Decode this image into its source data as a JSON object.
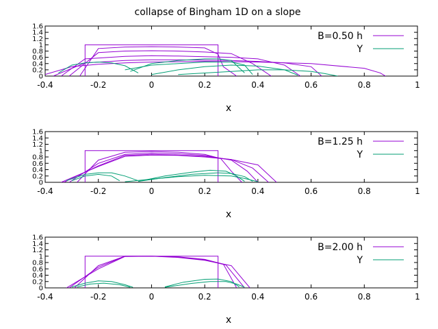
{
  "title": "collapse of Bingham 1D on a slope",
  "colors": {
    "h": "#9400d3",
    "Y": "#009e73"
  },
  "xlabel": "x",
  "xticks": [
    "-0.4",
    "-0.2",
    "0",
    "0.2",
    "0.4",
    "0.6",
    "0.8",
    "1"
  ],
  "yticks": [
    "0",
    "0.2",
    "0.4",
    "0.6",
    "0.8",
    "1",
    "1.2",
    "1.4",
    "1.6"
  ],
  "chart_data": [
    {
      "type": "line",
      "legend": [
        "B=0.50 h",
        "Y"
      ],
      "xlim": [
        -0.4,
        1.0
      ],
      "ylim": [
        0,
        1.6
      ],
      "series": [
        {
          "group": "h",
          "x": [
            -0.25,
            -0.25,
            0.25,
            0.25
          ],
          "y": [
            0,
            1,
            1,
            0
          ]
        },
        {
          "group": "h",
          "x": [
            -0.27,
            -0.2,
            -0.1,
            0.0,
            0.1,
            0.2,
            0.25,
            0.27,
            0.32
          ],
          "y": [
            0,
            0.88,
            0.93,
            0.94,
            0.93,
            0.9,
            0.7,
            0.3,
            0
          ]
        },
        {
          "group": "h",
          "x": [
            -0.31,
            -0.2,
            -0.1,
            0.0,
            0.1,
            0.2,
            0.3,
            0.38,
            0.45
          ],
          "y": [
            0,
            0.75,
            0.8,
            0.81,
            0.8,
            0.77,
            0.72,
            0.4,
            0
          ]
        },
        {
          "group": "h",
          "x": [
            -0.34,
            -0.25,
            -0.1,
            0.0,
            0.1,
            0.2,
            0.3,
            0.4,
            0.5,
            0.56
          ],
          "y": [
            0,
            0.55,
            0.63,
            0.65,
            0.64,
            0.62,
            0.6,
            0.55,
            0.35,
            0
          ]
        },
        {
          "group": "h",
          "x": [
            -0.37,
            -0.25,
            -0.1,
            0.0,
            0.1,
            0.2,
            0.3,
            0.4,
            0.5,
            0.6,
            0.64
          ],
          "y": [
            0,
            0.42,
            0.5,
            0.52,
            0.52,
            0.51,
            0.5,
            0.47,
            0.42,
            0.3,
            0
          ]
        },
        {
          "group": "h",
          "x": [
            -0.4,
            -0.3,
            -0.2,
            -0.1,
            0.0,
            0.2,
            0.4,
            0.6,
            0.8,
            0.86,
            0.88
          ],
          "y": [
            0.05,
            0.3,
            0.38,
            0.42,
            0.45,
            0.47,
            0.45,
            0.4,
            0.25,
            0.1,
            0
          ]
        },
        {
          "group": "Y",
          "x": [
            -0.35,
            -0.3,
            -0.25,
            -0.2,
            -0.15,
            -0.1,
            -0.05
          ],
          "y": [
            0.1,
            0.35,
            0.42,
            0.45,
            0.42,
            0.33,
            0.1
          ]
        },
        {
          "group": "Y",
          "x": [
            -0.08,
            0.0,
            0.1,
            0.2,
            0.25,
            0.3,
            0.35
          ],
          "y": [
            0.15,
            0.4,
            0.5,
            0.55,
            0.55,
            0.5,
            0.1
          ]
        },
        {
          "group": "Y",
          "x": [
            -0.1,
            0.0,
            0.2,
            0.3,
            0.35,
            0.38
          ],
          "y": [
            0.2,
            0.35,
            0.45,
            0.45,
            0.35,
            0.05
          ]
        },
        {
          "group": "Y",
          "x": [
            0.0,
            0.1,
            0.2,
            0.3,
            0.4,
            0.5,
            0.55
          ],
          "y": [
            0.05,
            0.2,
            0.3,
            0.35,
            0.32,
            0.2,
            0.03
          ]
        },
        {
          "group": "Y",
          "x": [
            0.1,
            0.3,
            0.4,
            0.5,
            0.6,
            0.65,
            0.7
          ],
          "y": [
            0.05,
            0.15,
            0.2,
            0.2,
            0.15,
            0.08,
            0
          ]
        }
      ]
    },
    {
      "type": "line",
      "legend": [
        "B=1.25 h",
        "Y"
      ],
      "xlim": [
        -0.4,
        1.0
      ],
      "ylim": [
        0,
        1.6
      ],
      "series": [
        {
          "group": "h",
          "x": [
            -0.25,
            -0.25,
            0.25,
            0.25
          ],
          "y": [
            0,
            1,
            1,
            0
          ]
        },
        {
          "group": "h",
          "x": [
            -0.28,
            -0.2,
            -0.1,
            0.0,
            0.1,
            0.2,
            0.26,
            0.3,
            0.34
          ],
          "y": [
            0,
            0.7,
            0.95,
            0.97,
            0.95,
            0.88,
            0.75,
            0.35,
            0
          ]
        },
        {
          "group": "h",
          "x": [
            -0.31,
            -0.2,
            -0.1,
            0.0,
            0.1,
            0.2,
            0.3,
            0.36,
            0.4
          ],
          "y": [
            0,
            0.6,
            0.88,
            0.92,
            0.9,
            0.85,
            0.7,
            0.35,
            0
          ]
        },
        {
          "group": "h",
          "x": [
            -0.33,
            -0.2,
            -0.1,
            0.0,
            0.1,
            0.2,
            0.3,
            0.38,
            0.44
          ],
          "y": [
            0,
            0.52,
            0.85,
            0.88,
            0.86,
            0.82,
            0.72,
            0.45,
            0
          ]
        },
        {
          "group": "h",
          "x": [
            -0.34,
            -0.2,
            -0.1,
            0.0,
            0.1,
            0.2,
            0.3,
            0.4,
            0.47
          ],
          "y": [
            0,
            0.5,
            0.82,
            0.86,
            0.85,
            0.8,
            0.72,
            0.55,
            0
          ]
        },
        {
          "group": "Y",
          "x": [
            -0.32,
            -0.25,
            -0.2,
            -0.15,
            -0.1,
            -0.05
          ],
          "y": [
            0.05,
            0.25,
            0.3,
            0.3,
            0.2,
            0.05
          ]
        },
        {
          "group": "Y",
          "x": [
            -0.3,
            -0.25,
            -0.2,
            -0.15,
            -0.12
          ],
          "y": [
            0.05,
            0.2,
            0.25,
            0.2,
            0.05
          ]
        },
        {
          "group": "Y",
          "x": [
            -0.05,
            0.05,
            0.15,
            0.22,
            0.28,
            0.32,
            0.35
          ],
          "y": [
            0.03,
            0.2,
            0.32,
            0.38,
            0.35,
            0.2,
            0.03
          ]
        },
        {
          "group": "Y",
          "x": [
            -0.05,
            0.05,
            0.15,
            0.25,
            0.3,
            0.35,
            0.38
          ],
          "y": [
            0.03,
            0.15,
            0.25,
            0.3,
            0.28,
            0.18,
            0.03
          ]
        },
        {
          "group": "Y",
          "x": [
            -0.1,
            0.0,
            0.1,
            0.2,
            0.3,
            0.35,
            0.4
          ],
          "y": [
            0.02,
            0.1,
            0.18,
            0.22,
            0.2,
            0.12,
            0.02
          ]
        }
      ]
    },
    {
      "type": "line",
      "legend": [
        "B=2.00 h",
        "Y"
      ],
      "xlim": [
        -0.4,
        1.0
      ],
      "ylim": [
        0,
        1.6
      ],
      "series": [
        {
          "group": "h",
          "x": [
            -0.25,
            -0.25,
            0.25,
            0.25
          ],
          "y": [
            0,
            1,
            1,
            0
          ]
        },
        {
          "group": "h",
          "x": [
            -0.29,
            -0.2,
            -0.1,
            0.0,
            0.1,
            0.2,
            0.27,
            0.32
          ],
          "y": [
            0,
            0.7,
            1.0,
            1.0,
            0.98,
            0.9,
            0.75,
            0
          ]
        },
        {
          "group": "h",
          "x": [
            -0.31,
            -0.2,
            -0.1,
            0.0,
            0.1,
            0.2,
            0.28,
            0.35
          ],
          "y": [
            0,
            0.65,
            1.0,
            1.0,
            0.97,
            0.88,
            0.72,
            0
          ]
        },
        {
          "group": "h",
          "x": [
            -0.32,
            -0.2,
            -0.1,
            0.0,
            0.1,
            0.2,
            0.3,
            0.37
          ],
          "y": [
            0,
            0.6,
            0.99,
            1.0,
            0.96,
            0.87,
            0.7,
            0
          ]
        },
        {
          "group": "Y",
          "x": [
            -0.3,
            -0.25,
            -0.2,
            -0.15,
            -0.1,
            -0.07
          ],
          "y": [
            0.03,
            0.15,
            0.22,
            0.2,
            0.1,
            0.02
          ]
        },
        {
          "group": "Y",
          "x": [
            -0.28,
            -0.23,
            -0.18,
            -0.12,
            -0.08
          ],
          "y": [
            0.03,
            0.12,
            0.15,
            0.1,
            0.02
          ]
        },
        {
          "group": "Y",
          "x": [
            0.05,
            0.12,
            0.2,
            0.25,
            0.3,
            0.33
          ],
          "y": [
            0.03,
            0.18,
            0.27,
            0.28,
            0.2,
            0.03
          ]
        },
        {
          "group": "Y",
          "x": [
            0.05,
            0.15,
            0.22,
            0.28,
            0.32,
            0.35
          ],
          "y": [
            0.02,
            0.14,
            0.2,
            0.2,
            0.12,
            0.02
          ]
        }
      ]
    }
  ]
}
